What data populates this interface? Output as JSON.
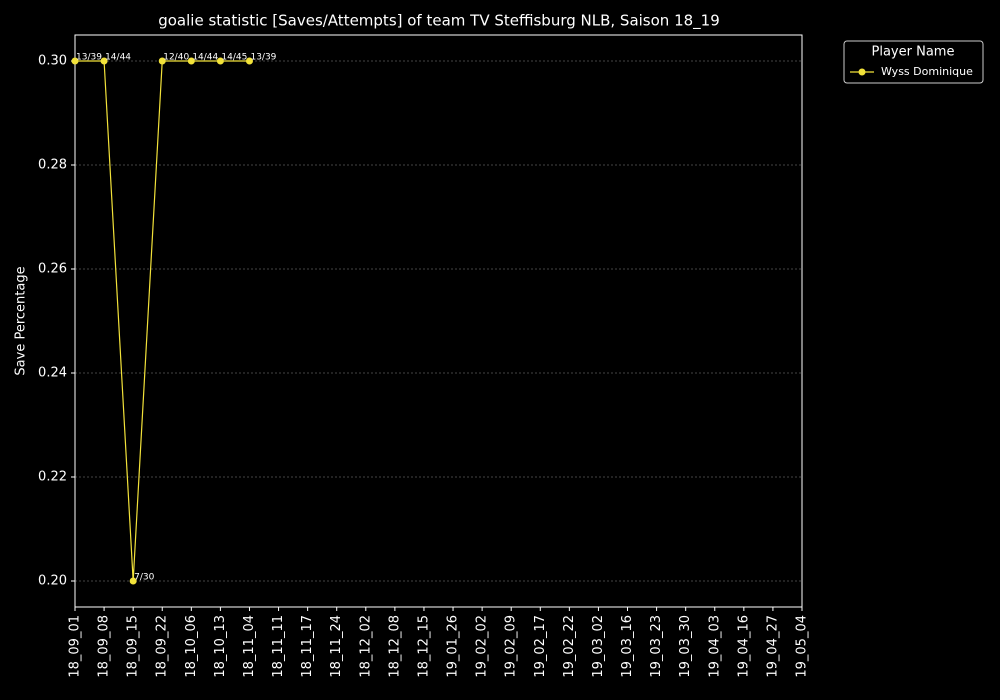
{
  "chart_data": {
    "type": "line",
    "title": "goalie statistic [Saves/Attempts] of team TV Steffisburg NLB, Saison 18_19",
    "y_label": "Save Percentage",
    "legend_title": "Player Name",
    "legend_position": "upper right outside",
    "grid": true,
    "categories": [
      "18_09_01",
      "18_09_08",
      "18_09_15",
      "18_09_22",
      "18_10_06",
      "18_10_13",
      "18_11_04",
      "18_11_11",
      "18_11_17",
      "18_11_24",
      "18_12_02",
      "18_12_08",
      "18_12_15",
      "19_01_26",
      "19_02_02",
      "19_02_09",
      "19_02_17",
      "19_02_22",
      "19_03_02",
      "19_03_16",
      "19_03_23",
      "19_03_30",
      "19_04_03",
      "19_04_16",
      "19_04_27",
      "19_05_04"
    ],
    "series": [
      {
        "name": "Wyss Dominique",
        "color": "#f2e23a",
        "values": [
          0.3,
          0.3,
          0.2,
          0.3,
          0.3,
          0.3,
          0.3,
          null,
          null,
          null,
          null,
          null,
          null,
          null,
          null,
          null,
          null,
          null,
          null,
          null,
          null,
          null,
          null,
          null,
          null,
          null
        ],
        "value_labels": [
          "13/39",
          "14/44",
          "7/30",
          "12/40",
          "14/44",
          "14/45",
          "13/39",
          null,
          null,
          null,
          null,
          null,
          null,
          null,
          null,
          null,
          null,
          null,
          null,
          null,
          null,
          null,
          null,
          null,
          null,
          null
        ]
      }
    ],
    "ylim": [
      0.195,
      0.305
    ],
    "yticks": [
      {
        "value": 0.2,
        "label": "0.20"
      },
      {
        "value": 0.22,
        "label": "0.22"
      },
      {
        "value": 0.24,
        "label": "0.24"
      },
      {
        "value": 0.26,
        "label": "0.26"
      },
      {
        "value": 0.28,
        "label": "0.28"
      },
      {
        "value": 0.3,
        "label": "0.30"
      }
    ]
  }
}
